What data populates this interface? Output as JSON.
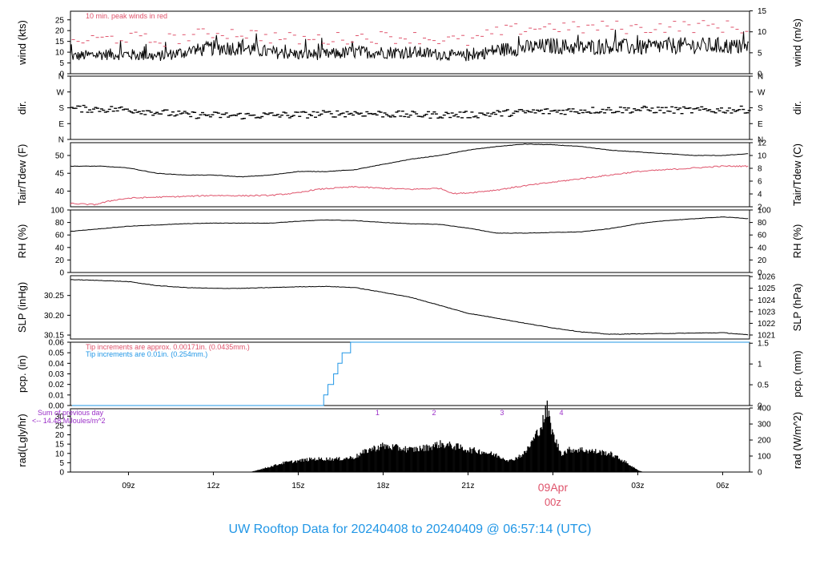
{
  "title": "UW Rooftop Data for 20240408  to  20240409 @ 06:57:14  (UTC)",
  "colors": {
    "black": "#000000",
    "red": "#df536b",
    "blue": "#2297e6",
    "purple": "#9b30c8"
  },
  "chart_data": {
    "type": "line",
    "time_axis": {
      "start_utc": "2024-04-08 06:57",
      "end_utc": "2024-04-09 06:57",
      "ticks": [
        {
          "label": "09z",
          "hour": 9
        },
        {
          "label": "12z",
          "hour": 12
        },
        {
          "label": "15z",
          "hour": 15
        },
        {
          "label": "18z",
          "hour": 18
        },
        {
          "label": "21z",
          "hour": 21
        },
        {
          "label": "00z",
          "hour": 24
        },
        {
          "label": "03z",
          "hour": 27
        },
        {
          "label": "06z",
          "hour": 30
        }
      ],
      "date_label": "09Apr",
      "date_sublabel": "00z"
    },
    "panels": [
      {
        "id": "wind",
        "ylabel_left": "wind (kts)",
        "ylabel_right": "wind (m/s)",
        "left_ticks": [
          "0",
          "5",
          "10",
          "15",
          "20",
          "25"
        ],
        "right_ticks": [
          "0",
          "5",
          "10",
          "15"
        ],
        "ylim": [
          0,
          29
        ],
        "annotation": "10 min. peak winds in red",
        "series": [
          {
            "name": "wind",
            "color": "#000000",
            "x": [
              7,
              8,
              9,
              10,
              11,
              12,
              13,
              14,
              15,
              16,
              17,
              18,
              19,
              20,
              21,
              22,
              23,
              24,
              25,
              26,
              27,
              28,
              29,
              30,
              30.95
            ],
            "y": [
              8,
              9,
              9,
              8,
              10,
              12,
              12,
              10,
              9,
              9,
              10,
              10,
              10,
              9,
              8,
              11,
              12,
              13,
              12,
              13,
              12,
              13,
              13,
              13,
              12
            ]
          },
          {
            "name": "peak",
            "color": "#df536b",
            "x": [
              7,
              8,
              9,
              10,
              11,
              12,
              13,
              14,
              15,
              16,
              17,
              18,
              19,
              20,
              21,
              22,
              23,
              24,
              25,
              26,
              27,
              28,
              29,
              30,
              30.95
            ],
            "y": [
              15,
              16,
              17,
              15,
              17,
              19,
              19,
              17,
              16,
              16,
              17,
              17,
              17,
              16,
              15,
              19,
              21,
              22,
              21,
              22,
              21,
              22,
              22,
              22,
              21
            ]
          }
        ]
      },
      {
        "id": "dir",
        "ylabel_left": "dir.",
        "ylabel_right": "dir.",
        "left_ticks": [
          "N",
          "E",
          "S",
          "W",
          "N"
        ],
        "right_ticks": [
          "N",
          "E",
          "S",
          "W",
          "N"
        ],
        "ylim": [
          0,
          360
        ],
        "series": [
          {
            "name": "direction",
            "color": "#000000",
            "x": [
              7,
              9,
              11,
              13,
              15,
              17,
              19,
              21,
              23,
              25,
              27,
              29,
              30.95
            ],
            "y": [
              175,
              170,
              140,
              135,
              140,
              150,
              140,
              140,
              155,
              165,
              170,
              165,
              170
            ]
          }
        ]
      },
      {
        "id": "temp",
        "ylabel_left": "Tair/Tdew (F)",
        "ylabel_right": "Tair/Tdew (C)",
        "left_ticks": [
          "40",
          "45",
          "50"
        ],
        "right_ticks": [
          "2",
          "4",
          "6",
          "8",
          "10",
          "12"
        ],
        "ylim": [
          35.6,
          53.6
        ],
        "series": [
          {
            "name": "Tair",
            "color": "#000000",
            "x": [
              7,
              8,
              9,
              10,
              11,
              12,
              13,
              14,
              15,
              16,
              17,
              18,
              19,
              20,
              21,
              22,
              23,
              24,
              25,
              26,
              27,
              28,
              29,
              30,
              30.95
            ],
            "y": [
              47,
              47,
              46.5,
              45,
              44.5,
              44.5,
              44,
              44.5,
              45.5,
              45.5,
              46,
              47.5,
              49,
              50,
              51.5,
              52.5,
              53.2,
              53,
              52.5,
              51.5,
              51,
              50.5,
              50,
              50,
              50.5
            ]
          },
          {
            "name": "Tdew",
            "color": "#df536b",
            "x": [
              7,
              7.8,
              8.5,
              9,
              10,
              11,
              12,
              13,
              14,
              15,
              15.5,
              16,
              17,
              18,
              19,
              20,
              20.5,
              21,
              22,
              23,
              24,
              25,
              26,
              27,
              28,
              29,
              30,
              30.95
            ],
            "y": [
              36.5,
              36.2,
              37.5,
              38,
              38.3,
              38.5,
              38.8,
              38.7,
              38.8,
              39.5,
              40.3,
              40.7,
              41.2,
              40.8,
              40.5,
              40.8,
              39.3,
              39.5,
              40.3,
              41.5,
              42.5,
              43.5,
              44.5,
              45.5,
              46,
              46.5,
              47,
              47
            ]
          }
        ]
      },
      {
        "id": "rh",
        "ylabel_left": "RH (%)",
        "ylabel_right": "RH (%)",
        "left_ticks": [
          "0",
          "20",
          "40",
          "60",
          "80",
          "100"
        ],
        "right_ticks": [
          "0",
          "20",
          "40",
          "60",
          "80",
          "100"
        ],
        "ylim": [
          0,
          100
        ],
        "series": [
          {
            "name": "RH",
            "color": "#000000",
            "x": [
              7,
              8,
              9,
              10,
              11,
              12,
              13,
              14,
              15,
              16,
              17,
              18,
              19,
              20,
              21,
              22,
              23,
              24,
              25,
              26,
              27,
              28,
              29,
              30,
              30.95
            ],
            "y": [
              66,
              70,
              74,
              76,
              78,
              79,
              79,
              79,
              82,
              84,
              83,
              80,
              78,
              77,
              71,
              63,
              63,
              64,
              65,
              70,
              78,
              83,
              86,
              89,
              86
            ]
          }
        ]
      },
      {
        "id": "slp",
        "ylabel_left": "SLP (inHg)",
        "ylabel_right": "SLP (hPa)",
        "left_ticks": [
          "30.15",
          "30.20",
          "30.25"
        ],
        "right_ticks": [
          "1021",
          "1022",
          "1023",
          "1024",
          "1025",
          "1026"
        ],
        "ylim": [
          30.14,
          30.3
        ],
        "series": [
          {
            "name": "SLP",
            "color": "#000000",
            "x": [
              7,
              8,
              9,
              10,
              11,
              12,
              13,
              14,
              15,
              16,
              17,
              18,
              19,
              20,
              21,
              22,
              23,
              24,
              25,
              26,
              27,
              28,
              29,
              30,
              30.95
            ],
            "y": [
              30.29,
              30.288,
              30.285,
              30.275,
              30.27,
              30.268,
              30.268,
              30.27,
              30.272,
              30.273,
              30.27,
              30.258,
              30.245,
              30.225,
              30.205,
              30.193,
              30.18,
              30.168,
              30.158,
              30.152,
              30.153,
              30.154,
              30.155,
              30.156,
              30.15
            ]
          }
        ]
      },
      {
        "id": "pcp",
        "ylabel_left": "pcp. (in)",
        "ylabel_right": "pcp. (mm)",
        "left_ticks": [
          "0.00",
          "0.01",
          "0.02",
          "0.03",
          "0.04",
          "0.05",
          "0.06"
        ],
        "right_ticks": [
          "0",
          "0.5",
          "1",
          "1.5"
        ],
        "ylim": [
          0,
          0.06
        ],
        "annotations": [
          "Tip increments are approx. 0.00171in. (0.0435mm.)",
          "Tip increments are 0.01in. (0.254mm.)"
        ],
        "series": [
          {
            "name": "precip",
            "color": "#2297e6",
            "x": [
              7,
              15.9,
              15.9,
              16.05,
              16.05,
              16.25,
              16.25,
              16.4,
              16.4,
              16.55,
              16.55,
              16.7,
              16.7,
              16.85,
              16.85,
              17.0,
              17.0,
              30.95
            ],
            "y": [
              0,
              0,
              0.01,
              0.01,
              0.02,
              0.02,
              0.03,
              0.03,
              0.04,
              0.04,
              0.05,
              0.05,
              0.05,
              0.05,
              0.06,
              0.06,
              0.06,
              0.06
            ]
          }
        ]
      },
      {
        "id": "rad",
        "ylabel_left": "rad(Lgly/hr)",
        "ylabel_right": "rad (W/m^2)",
        "left_ticks": [
          "0",
          "5",
          "10",
          "15",
          "20",
          "25",
          "30"
        ],
        "right_ticks": [
          "0",
          "100",
          "200",
          "300",
          "400"
        ],
        "ylim": [
          0,
          34
        ],
        "annotations": [
          "Sum of previous day",
          "<-- 14.48 MJoules/m^2"
        ],
        "markers": [
          {
            "label": "1",
            "hour": 17.8
          },
          {
            "label": "2",
            "hour": 19.8
          },
          {
            "label": "3",
            "hour": 22.2
          },
          {
            "label": "4",
            "hour": 24.3
          }
        ],
        "series": [
          {
            "name": "radiation",
            "color": "#000000",
            "x": [
              7,
              13.3,
              13.8,
              14.5,
              15,
              15.5,
              16,
              16.5,
              17,
              17.5,
              18,
              18.5,
              19,
              19.5,
              20,
              20.5,
              21,
              21.5,
              22,
              22.5,
              23,
              23.3,
              23.6,
              23.8,
              24,
              24.3,
              24.6,
              25,
              25.5,
              26,
              26.5,
              27,
              27.2,
              30.95
            ],
            "y": [
              0,
              0,
              2,
              5,
              6,
              7,
              7,
              7,
              8,
              12,
              14,
              13,
              12,
              13,
              15,
              14,
              12,
              11,
              9,
              6,
              10,
              17,
              25,
              34,
              20,
              10,
              12,
              12,
              11,
              10,
              6,
              1,
              0,
              0
            ]
          }
        ]
      }
    ]
  }
}
